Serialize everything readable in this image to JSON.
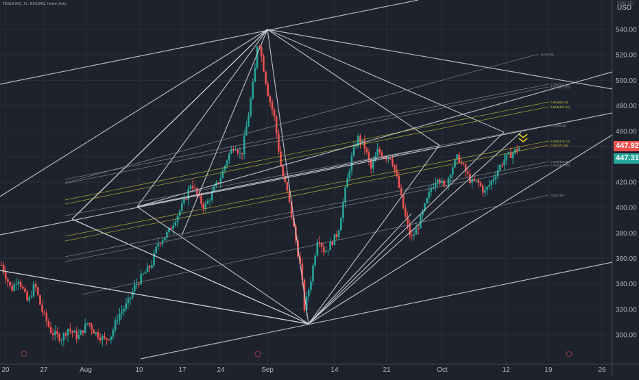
{
  "header": {
    "symbol_line": "TESLA INC, 2h, NASDAQ, Heikin Ashi",
    "currency": "USD",
    "top_price_partial": "560.00"
  },
  "price_labels": {
    "red_value": "447.92",
    "green_value": "447.31"
  },
  "colors": {
    "background": "#1e222d",
    "up": "#26a69a",
    "down": "#ef5350",
    "fib": "#c8c832",
    "lines": "#d1d4dc",
    "arrow": "#f5d90a"
  },
  "chart_data": {
    "type": "candlestick",
    "style": "Heikin Ashi",
    "interval": "2h",
    "y_ticks": [
      300,
      320,
      340,
      360,
      380,
      400,
      420,
      440,
      460,
      480,
      500,
      520,
      540
    ],
    "y_tick_labels": [
      "300.00",
      "320.00",
      "340.00",
      "360.00",
      "380.00",
      "400.00",
      "420.00",
      "440.00",
      "460.00",
      "480.00",
      "500.00",
      "520.00",
      "540.00"
    ],
    "x_tick_labels": [
      "20",
      "27",
      "Aug",
      "10",
      "17",
      "24",
      "Sep",
      "14",
      "21",
      "Oct",
      "12",
      "19",
      "26"
    ],
    "ylim": [
      278,
      560
    ],
    "grid": true,
    "last_price_labels": [
      447.92,
      447.31
    ],
    "fib_levels": [
      {
        "label": "0.382(375.13)",
        "value": 375.13
      },
      {
        "label": "0.35(371.55)",
        "value": 371.55
      },
      {
        "label": "0.618(401.54)",
        "value": 401.54
      },
      {
        "label": "0.65(405.13)",
        "value": 405.13
      },
      {
        "label": "0.786(420.33)",
        "value": 420.33
      },
      {
        "label": "0.764(417.87)",
        "value": 417.87
      },
      {
        "label": "1(444.28)",
        "value": 444.28
      },
      {
        "label": "0.5(388.34)",
        "value": 388.34
      },
      {
        "label": "0.236(358.80)",
        "value": 358.8
      },
      {
        "label": "0.214(356.33)",
        "value": 356.33
      },
      {
        "label": "0(332.39)",
        "value": 332.39
      }
    ],
    "price_path": [
      [
        0,
        355
      ],
      [
        3,
        335
      ],
      [
        5,
        345
      ],
      [
        8,
        325
      ],
      [
        10,
        340
      ],
      [
        12,
        320
      ],
      [
        15,
        302
      ],
      [
        18,
        297
      ],
      [
        20,
        305
      ],
      [
        23,
        298
      ],
      [
        26,
        310
      ],
      [
        28,
        302
      ],
      [
        31,
        296
      ],
      [
        33,
        300
      ],
      [
        35,
        315
      ],
      [
        38,
        325
      ],
      [
        40,
        338
      ],
      [
        42,
        345
      ],
      [
        45,
        355
      ],
      [
        47,
        372
      ],
      [
        50,
        380
      ],
      [
        52,
        390
      ],
      [
        55,
        405
      ],
      [
        57,
        420
      ],
      [
        59,
        408
      ],
      [
        61,
        400
      ],
      [
        63,
        410
      ],
      [
        66,
        425
      ],
      [
        68,
        440
      ],
      [
        70,
        450
      ],
      [
        72,
        440
      ],
      [
        74,
        470
      ],
      [
        76,
        505
      ],
      [
        77,
        535
      ],
      [
        78,
        520
      ],
      [
        80,
        490
      ],
      [
        82,
        470
      ],
      [
        84,
        430
      ],
      [
        86,
        410
      ],
      [
        88,
        380
      ],
      [
        90,
        350
      ],
      [
        91,
        320
      ],
      [
        93,
        345
      ],
      [
        95,
        378
      ],
      [
        97,
        365
      ],
      [
        99,
        372
      ],
      [
        101,
        380
      ],
      [
        103,
        410
      ],
      [
        105,
        438
      ],
      [
        107,
        455
      ],
      [
        109,
        448
      ],
      [
        111,
        430
      ],
      [
        113,
        445
      ],
      [
        115,
        440
      ],
      [
        117,
        440
      ],
      [
        119,
        420
      ],
      [
        121,
        395
      ],
      [
        123,
        375
      ],
      [
        125,
        385
      ],
      [
        127,
        400
      ],
      [
        129,
        415
      ],
      [
        131,
        425
      ],
      [
        133,
        415
      ],
      [
        135,
        430
      ],
      [
        137,
        440
      ],
      [
        139,
        430
      ],
      [
        141,
        420
      ],
      [
        143,
        420
      ],
      [
        145,
        412
      ],
      [
        147,
        420
      ],
      [
        149,
        430
      ],
      [
        151,
        438
      ],
      [
        153,
        442
      ],
      [
        155,
        446
      ],
      [
        156,
        447.92
      ]
    ]
  }
}
